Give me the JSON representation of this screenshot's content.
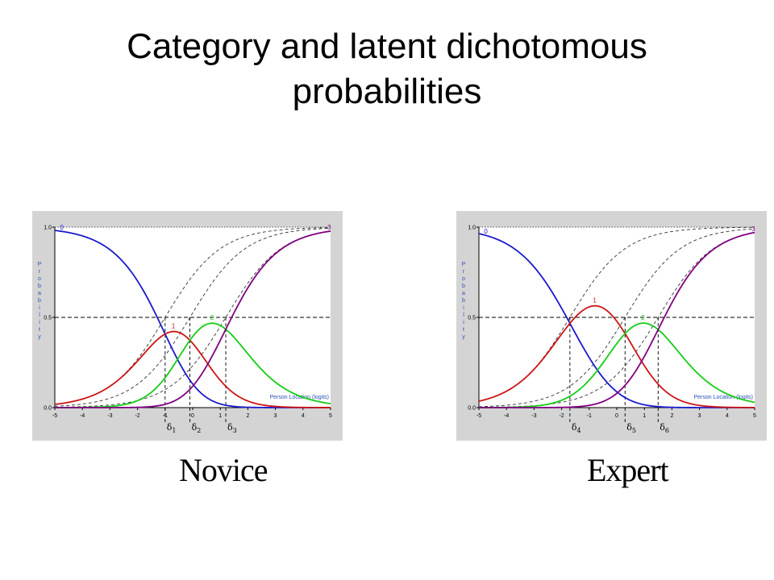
{
  "slide": {
    "title": "Category and latent dichotomous probabilities"
  },
  "chart_data": [
    {
      "type": "line",
      "panel_label": "Novice",
      "ylabel": "Probability",
      "xlabel": "Person Location (logits)",
      "xlim": [
        -5,
        5
      ],
      "ylim": [
        0,
        1
      ],
      "xticks": [
        -5,
        -4,
        -3,
        -2,
        -1,
        0,
        1,
        2,
        3,
        4,
        5
      ],
      "yticks": [
        0.0,
        0.5,
        1.0
      ],
      "ytick_labels": [
        "0.0",
        "0.5",
        "1.0"
      ],
      "reference_line_y": 0.5,
      "ceiling_line_y": 1.0,
      "thresholds": [
        -1.0,
        -0.1,
        1.2
      ],
      "threshold_labels": [
        "δ1",
        "δ2",
        "δ3"
      ],
      "category_labels": [
        "0",
        "1",
        "2",
        "3"
      ],
      "series_colors": [
        "#1a1acc",
        "#cc1414",
        "#14cc14",
        "#800080"
      ],
      "latent_color": "#333333"
    },
    {
      "type": "line",
      "panel_label": "Expert",
      "ylabel": "Probability",
      "xlabel": "Person Location (logits)",
      "xlim": [
        -5,
        5
      ],
      "ylim": [
        0,
        1
      ],
      "xticks": [
        -5,
        -4,
        -3,
        -2,
        -1,
        0,
        1,
        2,
        3,
        4,
        5
      ],
      "yticks": [
        0.0,
        0.5,
        1.0
      ],
      "ytick_labels": [
        "0.0",
        "0.5",
        "1.0"
      ],
      "reference_line_y": 0.5,
      "ceiling_line_y": 1.0,
      "thresholds": [
        -1.7,
        0.3,
        1.5
      ],
      "threshold_labels": [
        "δ4",
        "δ5",
        "δ6"
      ],
      "category_labels": [
        "0",
        "1",
        "2",
        "3"
      ],
      "series_colors": [
        "#1a1acc",
        "#cc1414",
        "#14cc14",
        "#800080"
      ],
      "latent_color": "#333333"
    }
  ]
}
